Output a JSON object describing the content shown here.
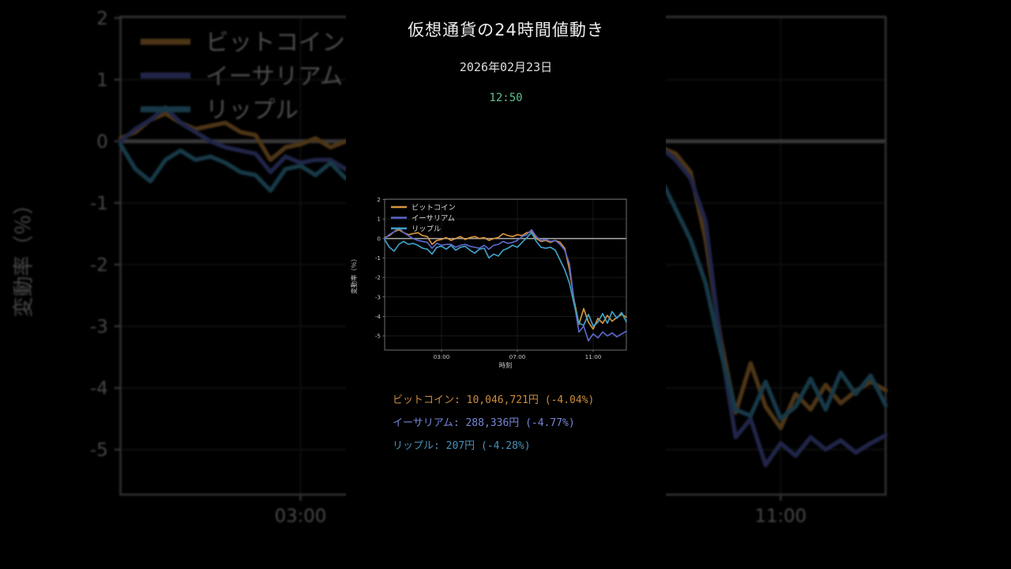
{
  "title": "仮想通貨の24時間値動き",
  "date": "2026年02月23日",
  "time": "12:50",
  "colors": {
    "background": "#000000",
    "title_text": "#ededed",
    "time_text": "#5fc18f",
    "axis_text": "#c8c8c8",
    "zero_line": "#9a9a9a",
    "grid_line": "#242424",
    "plot_border": "#8a8a8a",
    "legend_text": "#d8d8d8"
  },
  "chart_data": {
    "type": "line",
    "title": "",
    "xlabel": "時刻",
    "ylabel": "変動率（％）",
    "x_unit": "hours_since_midnight",
    "x_start": 0,
    "x_step": 0.25,
    "xlim": [
      0,
      12.75
    ],
    "ylim": [
      -5.73,
      2.02
    ],
    "y_ticks": [
      2,
      1,
      0,
      -1,
      -2,
      -3,
      -4,
      -5
    ],
    "x_ticks": [
      {
        "value": 3,
        "label": "03:00"
      },
      {
        "value": 7,
        "label": "07:00"
      },
      {
        "value": 11,
        "label": "11:00"
      }
    ],
    "grid": true,
    "zero_line": true,
    "legend_position": "upper-left",
    "series": [
      {
        "key": "bitcoin",
        "name": "ビットコイン",
        "color": "#d6943e",
        "values": [
          0.05,
          0.15,
          0.35,
          0.45,
          0.3,
          0.2,
          0.25,
          0.3,
          0.15,
          0.1,
          -0.3,
          -0.1,
          -0.05,
          0.05,
          -0.1,
          0.0,
          0.1,
          -0.05,
          0.05,
          0.1,
          0.0,
          0.05,
          -0.1,
          0.0,
          0.05,
          0.25,
          0.15,
          0.1,
          0.2,
          0.15,
          0.3,
          0.35,
          0.0,
          -0.15,
          -0.1,
          -0.2,
          -0.1,
          -0.2,
          -0.5,
          -1.6,
          -3.2,
          -4.4,
          -3.6,
          -4.3,
          -4.65,
          -4.1,
          -4.35,
          -3.95,
          -4.25,
          -4.05,
          -3.9,
          -4.04
        ]
      },
      {
        "key": "ethereum",
        "name": "イーサリアム",
        "color": "#5a67c8",
        "values": [
          0.0,
          0.2,
          0.35,
          0.55,
          0.3,
          0.15,
          0.0,
          -0.1,
          -0.15,
          -0.2,
          -0.5,
          -0.25,
          -0.35,
          -0.3,
          -0.3,
          -0.45,
          -0.35,
          -0.3,
          -0.4,
          -0.45,
          -0.5,
          -0.35,
          -0.55,
          -0.35,
          -0.3,
          -0.15,
          -0.25,
          -0.2,
          -0.1,
          0.1,
          0.2,
          0.45,
          0.1,
          -0.1,
          -0.05,
          -0.15,
          -0.1,
          -0.3,
          -0.6,
          -1.3,
          -3.3,
          -4.8,
          -4.5,
          -5.25,
          -4.9,
          -5.1,
          -4.8,
          -5.0,
          -4.85,
          -5.05,
          -4.9,
          -4.77
        ]
      },
      {
        "key": "ripple",
        "name": "リップル",
        "color": "#3f9fc4",
        "values": [
          -0.05,
          -0.45,
          -0.65,
          -0.3,
          -0.15,
          -0.3,
          -0.25,
          -0.35,
          -0.5,
          -0.55,
          -0.8,
          -0.45,
          -0.4,
          -0.55,
          -0.35,
          -0.6,
          -0.45,
          -0.4,
          -0.6,
          -0.75,
          -0.55,
          -0.5,
          -1.0,
          -0.8,
          -0.9,
          -0.6,
          -0.5,
          -0.35,
          -0.45,
          -0.2,
          0.05,
          0.3,
          -0.15,
          -0.45,
          -0.5,
          -0.45,
          -0.6,
          -1.1,
          -1.6,
          -2.3,
          -3.4,
          -4.35,
          -4.45,
          -3.9,
          -4.5,
          -4.3,
          -3.85,
          -4.35,
          -3.75,
          -4.1,
          -3.8,
          -4.28
        ]
      }
    ]
  },
  "summary": [
    {
      "key": "bitcoin",
      "label": "ビットコイン",
      "price": "10,046,721円",
      "change": "(-4.04%)",
      "text": "ビットコイン: 10,046,721円 (-4.04%)",
      "color": "#cd8c3d"
    },
    {
      "key": "ethereum",
      "label": "イーサリアム",
      "price": "288,336円",
      "change": "(-4.77%)",
      "text": "イーサリアム: 288,336円 (-4.77%)",
      "color": "#7787d6"
    },
    {
      "key": "ripple",
      "label": "リップル",
      "price": "207円",
      "change": "(-4.28%)",
      "text": "リップル: 207円 (-4.28%)",
      "color": "#4a90b5"
    }
  ]
}
